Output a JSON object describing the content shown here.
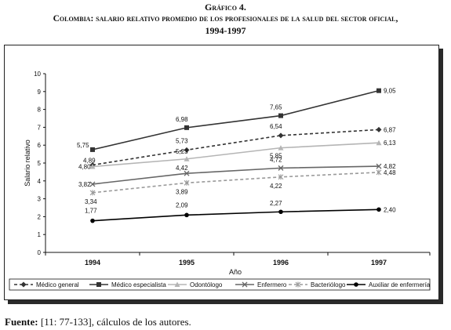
{
  "header": {
    "line1": "Gráfico 4.",
    "line2": "Colombia: salario relativo promedio de los profesionales de la salud del sector oficial,",
    "line3": "1994-1997"
  },
  "source": {
    "label": "Fuente:",
    "text": " [11: 77-133], cálculos de los autores."
  },
  "chart_data": {
    "type": "line",
    "title": "Gráfico 4. Colombia: salario relativo promedio de los profesionales de la salud del sector oficial, 1994-1997",
    "xlabel": "Año",
    "ylabel": "Salario relativo",
    "categories": [
      "1994",
      "1995",
      "1996",
      "1997"
    ],
    "ylim": [
      0,
      10
    ],
    "yticks": [
      0,
      1,
      2,
      3,
      4,
      5,
      6,
      7,
      8,
      9,
      10
    ],
    "grid": false,
    "legend_position": "bottom",
    "series": [
      {
        "name": "Médico general",
        "values": [
          4.89,
          5.73,
          6.54,
          6.87
        ],
        "labels": [
          "4,89",
          "5,73",
          "6,54",
          "6,87"
        ],
        "color": "#333333",
        "style": "dashed",
        "marker": "diamond"
      },
      {
        "name": "Médico especialista",
        "values": [
          5.75,
          6.98,
          7.65,
          9.05
        ],
        "labels": [
          "5,75",
          "6,98",
          "7,65",
          "9,05"
        ],
        "color": "#333333",
        "style": "solid",
        "marker": "square"
      },
      {
        "name": "Odontólogo",
        "values": [
          4.8,
          5.23,
          5.85,
          6.13
        ],
        "labels": [
          "4,80",
          "5,23",
          "5,85",
          "6,13"
        ],
        "color": "#b5b5b5",
        "style": "solid",
        "marker": "triangle"
      },
      {
        "name": "Enfermero",
        "values": [
          3.82,
          4.42,
          4.72,
          4.82
        ],
        "labels": [
          "3,82",
          "4,42",
          "4,72",
          "4,82"
        ],
        "color": "#666666",
        "style": "solid",
        "marker": "x"
      },
      {
        "name": "Bacteriólogo",
        "values": [
          3.34,
          3.89,
          4.22,
          4.48
        ],
        "labels": [
          "3,34",
          "3,89",
          "4,22",
          "4,48"
        ],
        "color": "#9a9a9a",
        "style": "dashed",
        "marker": "star"
      },
      {
        "name": "Auxiliar de enfermería",
        "values": [
          1.77,
          2.09,
          2.27,
          2.4
        ],
        "labels": [
          "1,77",
          "2,09",
          "2,27",
          "2,40"
        ],
        "color": "#000000",
        "style": "solid",
        "marker": "circle"
      }
    ]
  }
}
